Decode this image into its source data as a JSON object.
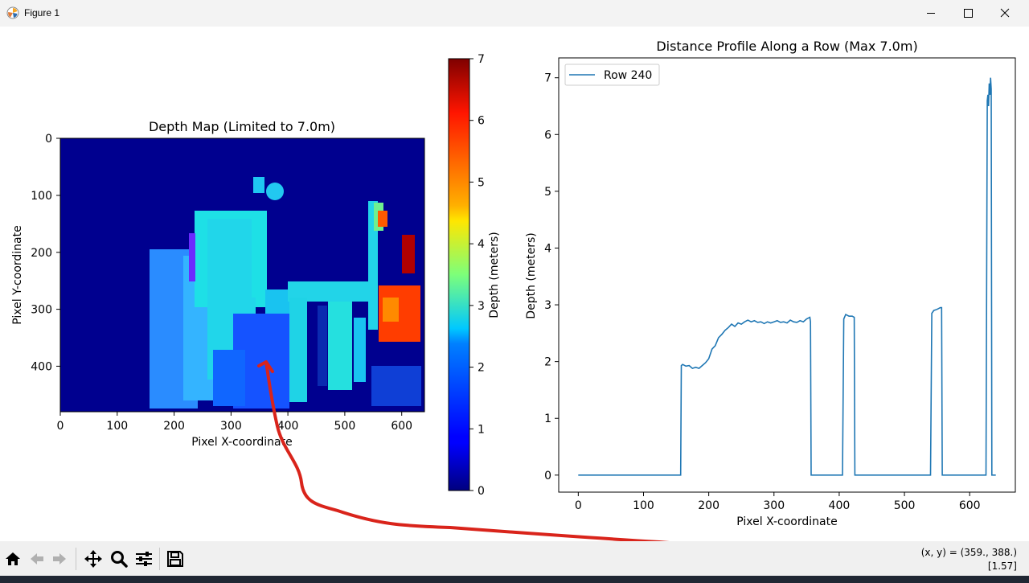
{
  "window": {
    "title": "Figure 1"
  },
  "left_plot": {
    "title": "Depth Map (Limited to 7.0m)",
    "xlabel": "Pixel X-coordinate",
    "ylabel": "Pixel Y-coordinate",
    "xticks": [
      "0",
      "100",
      "200",
      "300",
      "400",
      "500",
      "600"
    ],
    "yticks": [
      "0",
      "100",
      "200",
      "300",
      "400"
    ]
  },
  "colorbar": {
    "label": "Depth (meters)",
    "ticks": [
      "0",
      "1",
      "2",
      "3",
      "4",
      "5",
      "6",
      "7"
    ]
  },
  "chart_data": {
    "type": "line",
    "title": "Distance Profile Along a Row (Max 7.0m)",
    "xlabel": "Pixel X-coordinate",
    "ylabel": "Depth (meters)",
    "xticks": [
      "0",
      "100",
      "200",
      "300",
      "400",
      "500",
      "600"
    ],
    "yticks": [
      "0",
      "1",
      "2",
      "3",
      "4",
      "5",
      "6",
      "7"
    ],
    "xlim": [
      -30,
      670
    ],
    "ylim": [
      -0.3,
      7.35
    ],
    "legend_position": "upper-left",
    "series": [
      {
        "name": "Row 240",
        "x": [
          0,
          157,
          158,
          160,
          165,
          170,
          175,
          180,
          185,
          190,
          195,
          200,
          205,
          210,
          215,
          220,
          225,
          230,
          235,
          240,
          245,
          250,
          255,
          260,
          265,
          270,
          275,
          280,
          285,
          290,
          295,
          300,
          305,
          310,
          315,
          320,
          325,
          330,
          335,
          340,
          345,
          350,
          355,
          356,
          357,
          358,
          405,
          407,
          410,
          415,
          420,
          423,
          424,
          425,
          540,
          542,
          545,
          550,
          555,
          557,
          558,
          560,
          625,
          627,
          628,
          629,
          630,
          631,
          632,
          633,
          634,
          635,
          640
        ],
        "y": [
          0,
          0,
          1.93,
          1.95,
          1.92,
          1.93,
          1.88,
          1.9,
          1.88,
          1.93,
          1.98,
          2.05,
          2.22,
          2.28,
          2.42,
          2.48,
          2.55,
          2.6,
          2.66,
          2.62,
          2.68,
          2.66,
          2.7,
          2.73,
          2.7,
          2.72,
          2.69,
          2.7,
          2.67,
          2.7,
          2.68,
          2.7,
          2.72,
          2.69,
          2.7,
          2.68,
          2.73,
          2.7,
          2.69,
          2.72,
          2.7,
          2.75,
          2.78,
          2.7,
          0,
          0,
          0,
          2.75,
          2.83,
          2.8,
          2.8,
          2.78,
          0,
          0,
          0,
          2.85,
          2.9,
          2.92,
          2.95,
          2.95,
          0,
          0,
          0,
          6.6,
          6.7,
          6.5,
          6.9,
          6.7,
          7.0,
          6.8,
          0,
          0,
          0
        ]
      }
    ]
  },
  "toolbar": {
    "buttons": [
      "home-icon",
      "back-icon",
      "forward-icon",
      "pan-icon",
      "zoom-icon",
      "configure-icon",
      "save-icon"
    ]
  },
  "status": {
    "coords": "(x, y) = (359., 388.)",
    "value": "[1.57]"
  },
  "colors": {
    "line": "#1f77b4",
    "annotation": "#d9241b"
  }
}
